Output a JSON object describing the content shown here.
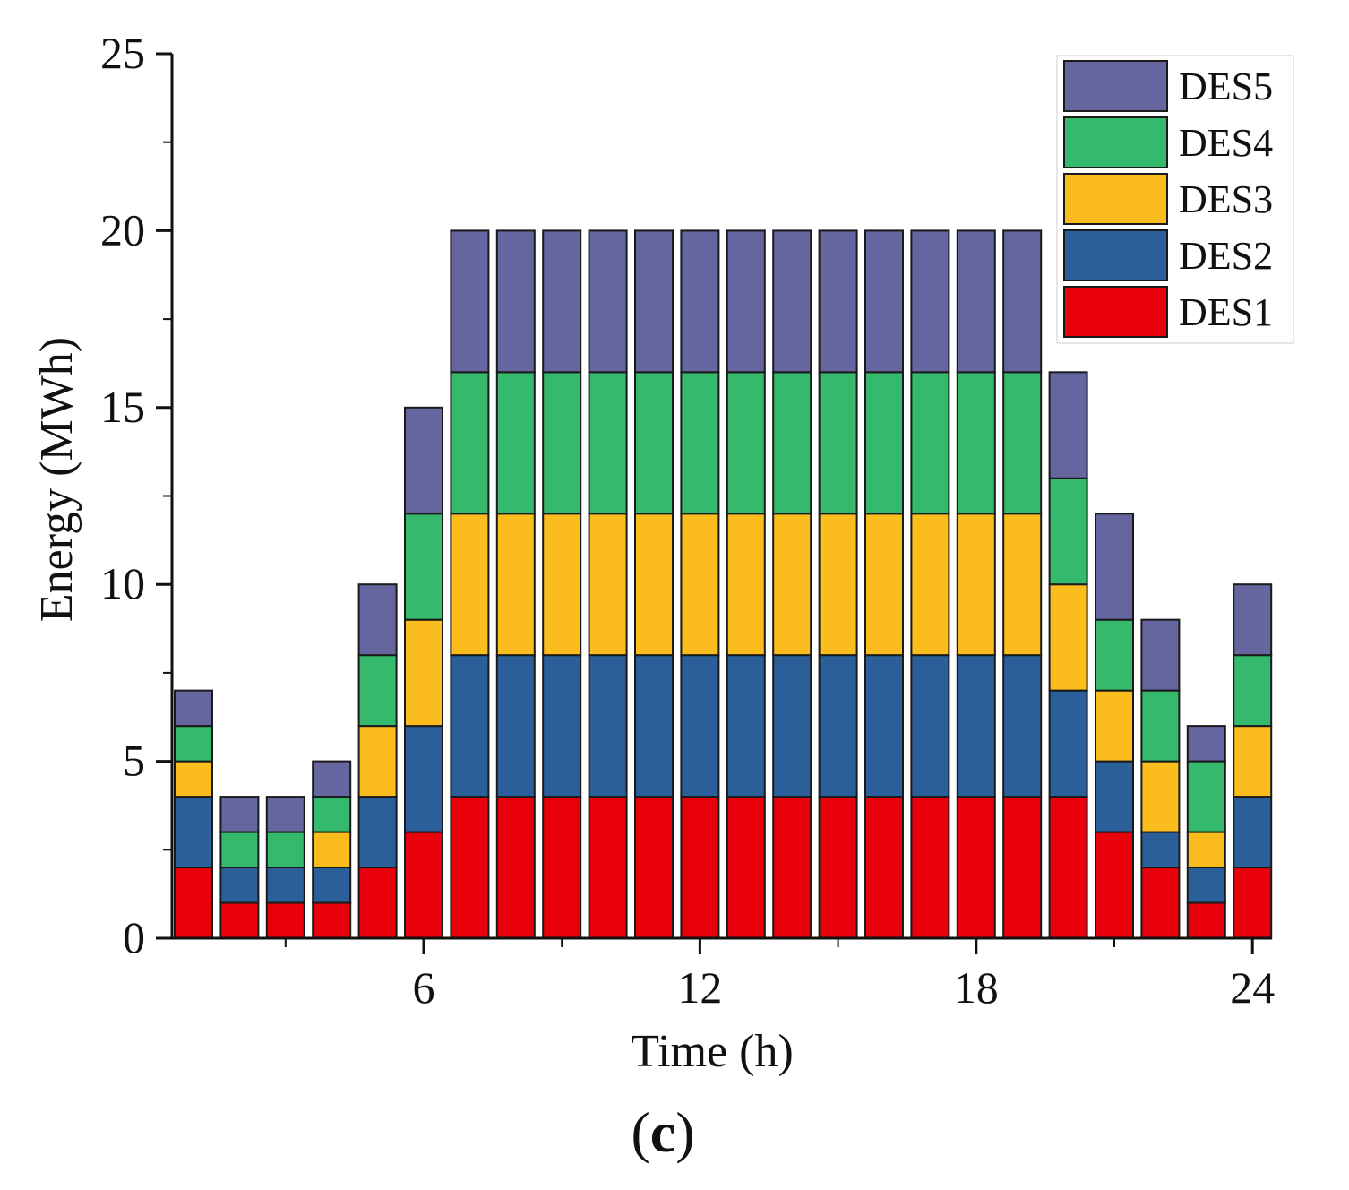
{
  "chart_data": {
    "type": "bar",
    "stacked": true,
    "x": [
      1,
      2,
      3,
      4,
      5,
      6,
      7,
      8,
      9,
      10,
      11,
      12,
      13,
      14,
      15,
      16,
      17,
      18,
      19,
      20,
      21,
      22,
      23,
      24
    ],
    "x_tick_labels": [
      "6",
      "12",
      "18",
      "24"
    ],
    "x_ticks": [
      6,
      12,
      18,
      24
    ],
    "xlabel": "Time (h)",
    "ylabel": "Energy (MWh)",
    "ylim": [
      0,
      25
    ],
    "y_ticks": [
      0,
      5,
      10,
      15,
      20,
      25
    ],
    "y_tick_labels": [
      "0",
      "5",
      "10",
      "15",
      "20",
      "25"
    ],
    "grid": false,
    "legend_position": "top-right",
    "panel_label": "c",
    "series": [
      {
        "name": "DES1",
        "color": "#e8000b",
        "values": [
          2,
          1,
          1,
          1,
          2,
          3,
          4,
          4,
          4,
          4,
          4,
          4,
          4,
          4,
          4,
          4,
          4,
          4,
          4,
          4,
          3,
          2,
          1,
          2
        ]
      },
      {
        "name": "DES2",
        "color": "#2b5f9a",
        "values": [
          2,
          1,
          1,
          1,
          2,
          3,
          4,
          4,
          4,
          4,
          4,
          4,
          4,
          4,
          4,
          4,
          4,
          4,
          4,
          3,
          2,
          1,
          1,
          2
        ]
      },
      {
        "name": "DES3",
        "color": "#fbbd1d",
        "values": [
          1,
          0,
          0,
          1,
          2,
          3,
          4,
          4,
          4,
          4,
          4,
          4,
          4,
          4,
          4,
          4,
          4,
          4,
          4,
          3,
          2,
          2,
          1,
          2
        ]
      },
      {
        "name": "DES4",
        "color": "#35b96c",
        "values": [
          1,
          1,
          1,
          1,
          2,
          3,
          4,
          4,
          4,
          4,
          4,
          4,
          4,
          4,
          4,
          4,
          4,
          4,
          4,
          3,
          2,
          2,
          2,
          2
        ]
      },
      {
        "name": "DES5",
        "color": "#6565a0",
        "values": [
          1,
          1,
          1,
          1,
          2,
          3,
          4,
          4,
          4,
          4,
          4,
          4,
          4,
          4,
          4,
          4,
          4,
          4,
          4,
          3,
          3,
          2,
          1,
          2
        ]
      }
    ]
  }
}
